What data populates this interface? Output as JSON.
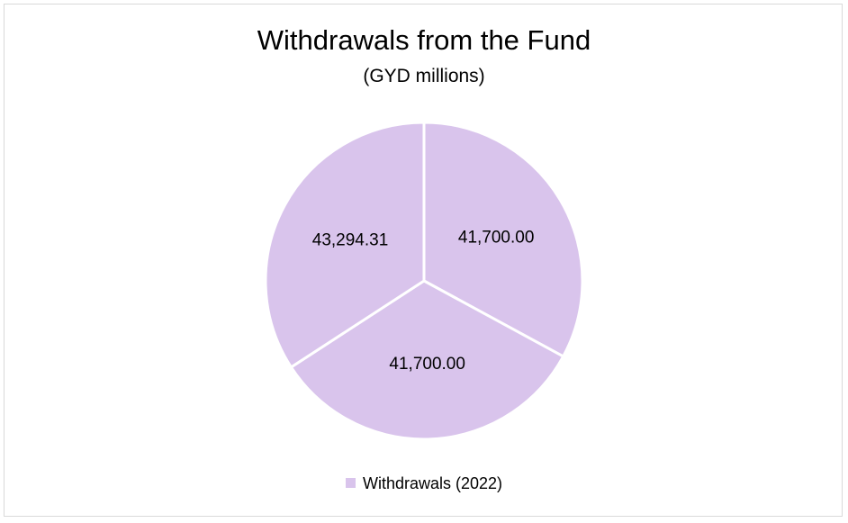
{
  "chart_data": {
    "type": "pie",
    "title": "Withdrawals from the Fund",
    "subtitle": "(GYD millions)",
    "categories": [
      "",
      "",
      ""
    ],
    "series": [
      {
        "name": "Withdrawals (2022)",
        "values": [
          41700.0,
          41700.0,
          43294.31
        ],
        "labels": [
          "41,700.00",
          "41,700.00",
          "43,294.31"
        ]
      }
    ],
    "colors": {
      "slice": "#d9c4ec",
      "border": "#ffffff"
    },
    "legend": {
      "position": "bottom",
      "entries": [
        "Withdrawals (2022)"
      ]
    }
  }
}
